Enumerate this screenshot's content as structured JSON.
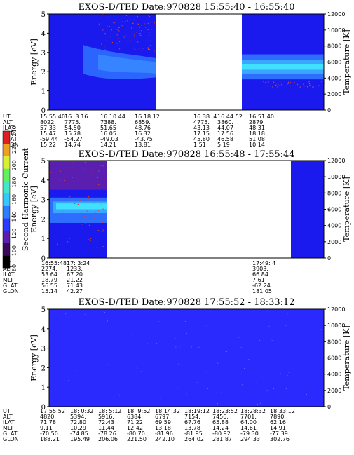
{
  "colors": {
    "background_blue": "#2a2aff",
    "dark_blue": "#1a1aee",
    "plasma_light": "#3aa6ff",
    "plasma_cyan": "#40e0ff",
    "gap_white": "#ffffff"
  },
  "chart_data": [
    {
      "type": "heatmap",
      "title": "EXOS-D/TED   Date:970828   15:55:40 - 16:55:40",
      "ylabel": "Energy [eV]",
      "y2label": "Temperature [K]",
      "ylim": [
        0,
        5
      ],
      "y2lim": [
        0,
        12000
      ],
      "yticks": [
        "0",
        "1",
        "2",
        "3",
        "4",
        "5"
      ],
      "y2ticks": [
        "0",
        "2000",
        "4000",
        "6000",
        "8000",
        "10000",
        "12000"
      ],
      "ephemeris_labels": [
        "UT",
        "ALT",
        "ILAT",
        "MLT",
        "GLAT",
        "GLON"
      ],
      "ephemeris": [
        {
          "ut": "15:55:40",
          "alt": "8022.",
          "ilat": "57.33",
          "mlt": "15.47",
          "glat": "-59.44",
          "glon": "15.22"
        },
        {
          "ut": "16: 3:16",
          "alt": "7775.",
          "ilat": "54.50",
          "mlt": "15.78",
          "glat": "-54.27",
          "glon": "14.74"
        },
        {
          "ut": "16:10:44",
          "alt": "7388.",
          "ilat": "51.65",
          "mlt": "16.05",
          "glat": "-49.03",
          "glon": "14.21"
        },
        {
          "ut": "16:18:12",
          "alt": "6859.",
          "ilat": "48.76",
          "mlt": "16.32",
          "glat": "-43.75",
          "glon": "13.81"
        },
        {
          "ut": "16:38: 4",
          "alt": "4775.",
          "ilat": "43.13",
          "mlt": "17.15",
          "glat": "45.80",
          "glon": "1.51"
        },
        {
          "ut": "16:44:52",
          "alt": "3860.",
          "ilat": "44.07",
          "mlt": "17.56",
          "glat": "46.58",
          "glon": "5.19"
        },
        {
          "ut": "16:51:40",
          "alt": "2879.",
          "ilat": "48.31",
          "mlt": "18.18",
          "glat": "51.08",
          "glon": "10.14"
        }
      ]
    },
    {
      "type": "heatmap",
      "title": "EXOS-D/TED   Date:970828   16:55:48 - 17:55:44",
      "ylabel": "Energy [eV]",
      "y2label": "Temperature [K]",
      "ylim": [
        0,
        5
      ],
      "y2lim": [
        0,
        12000
      ],
      "yticks": [
        "0",
        "1",
        "2",
        "3",
        "4",
        "5"
      ],
      "y2ticks": [
        "0",
        "2000",
        "4000",
        "6000",
        "8000",
        "10000",
        "12000"
      ],
      "ephemeris_labels": [
        "UT",
        "ALT",
        "ILAT",
        "MLT",
        "GLAT",
        "GLON"
      ],
      "ephemeris": [
        {
          "ut": "16:55:48",
          "alt": "2274.",
          "ilat": "53.64",
          "mlt": "18.79",
          "glat": "56.55",
          "glon": "15.14"
        },
        {
          "ut": "17: 3:24",
          "alt": "1233.",
          "ilat": "67.20",
          "mlt": "21.22",
          "glat": "71.43",
          "glon": "42.27"
        },
        {
          "ut": "17:49: 4",
          "alt": "3903.",
          "ilat": "66.84",
          "mlt": "7.61",
          "glat": "-62.24",
          "glon": "181.05"
        }
      ],
      "colorbar": {
        "label": "Second Harmonic Current",
        "ticks": [
          "80",
          "100",
          "120",
          "140",
          "160",
          "180",
          "200",
          "220",
          "240"
        ],
        "range": [
          80,
          240
        ]
      }
    },
    {
      "type": "heatmap",
      "title": "EXOS-D/TED   Date:970828   17:55:52 - 18:33:12",
      "ylabel": "Energy [eV]",
      "y2label": "Temperature [K]",
      "ylim": [
        0,
        5
      ],
      "y2lim": [
        0,
        12000
      ],
      "yticks": [
        "0",
        "1",
        "2",
        "3",
        "4",
        "5"
      ],
      "y2ticks": [
        "0",
        "2000",
        "4000",
        "6000",
        "8000",
        "10000",
        "12000"
      ],
      "ephemeris_labels": [
        "UT",
        "ALT",
        "ILAT",
        "MLT",
        "GLAT",
        "GLON"
      ],
      "ephemeris": [
        {
          "ut": "17:55:52",
          "alt": "4820.",
          "ilat": "71.78",
          "mlt": "9.11",
          "glat": "-70.50",
          "glon": "188.21"
        },
        {
          "ut": "18: 0:32",
          "alt": "5394.",
          "ilat": "72.80",
          "mlt": "10.29",
          "glat": "-74.85",
          "glon": "195.49"
        },
        {
          "ut": "18: 5:12",
          "alt": "5916.",
          "ilat": "72.43",
          "mlt": "11.44",
          "glat": "-78.26",
          "glon": "206.06"
        },
        {
          "ut": "18: 9:52",
          "alt": "6384.",
          "ilat": "71.22",
          "mlt": "12.42",
          "glat": "-80.70",
          "glon": "221.50"
        },
        {
          "ut": "18:14:32",
          "alt": "6797.",
          "ilat": "69.59",
          "mlt": "13.18",
          "glat": "-81.96",
          "glon": "242.10"
        },
        {
          "ut": "18:19:12",
          "alt": "7154.",
          "ilat": "67.76",
          "mlt": "13.78",
          "glat": "-81.95",
          "glon": "264.02"
        },
        {
          "ut": "18:23:52",
          "alt": "7456.",
          "ilat": "65.88",
          "mlt": "14.24",
          "glat": "-80.92",
          "glon": "281.87"
        },
        {
          "ut": "18:28:32",
          "alt": "7701.",
          "ilat": "64.00",
          "mlt": "14.61",
          "glat": "-79.30",
          "glon": "294.33"
        },
        {
          "ut": "18:33:12",
          "alt": "7890.",
          "ilat": "62.16",
          "mlt": "14.91",
          "glat": "-77.39",
          "glon": "302.76"
        }
      ]
    }
  ]
}
